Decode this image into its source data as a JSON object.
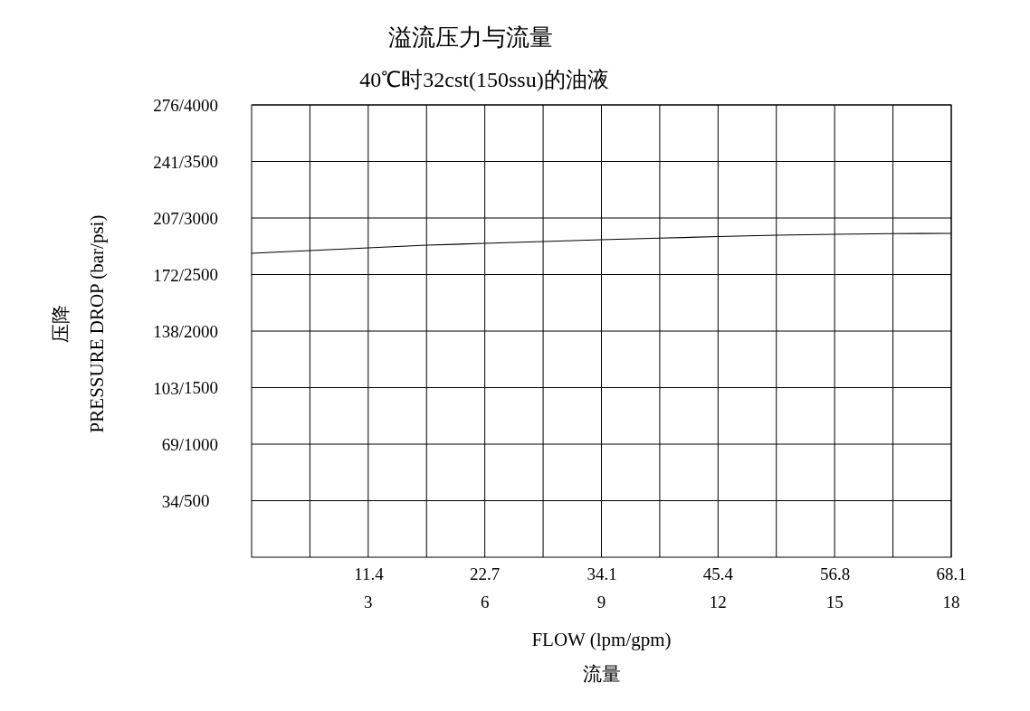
{
  "chart_data": {
    "type": "line",
    "title": "溢流压力与流量",
    "subtitle": "40℃时32cst(150ssu)的油液",
    "xlabel": "FLOW (lpm/gpm)\n流量",
    "ylabel": "压降\nPRESSURE DROP (bar/psi)",
    "x": [
      0,
      1.5,
      3,
      4.5,
      6,
      7.5,
      9,
      10.5,
      12,
      13.5,
      15,
      16.5,
      18
    ],
    "series": [
      {
        "color": "#000000",
        "axis": "y2",
        "values": [
          2688,
          2712,
          2736,
          2760,
          2776,
          2792,
          2808,
          2822,
          2836,
          2848,
          2856,
          2862,
          2864
        ]
      }
    ],
    "xlim": [
      0,
      18
    ],
    "xticks": [
      {
        "value": 1.5,
        "label": null
      },
      3,
      {
        "value": 4.5,
        "label": null
      },
      6,
      {
        "value": 7.5,
        "label": null
      },
      9,
      {
        "value": 10.5,
        "label": null
      },
      12,
      {
        "value": 13.5,
        "label": null
      },
      15,
      {
        "value": 16.5,
        "label": null
      },
      18
    ],
    "x2lim": [
      0,
      68.1
    ],
    "x2ticks": [
      11.4,
      22.7,
      34.1,
      45.4,
      56.8,
      68.1
    ],
    "ylim": [
      0,
      276
    ],
    "yticks": [
      {
        "value": 34,
        "label": "34/"
      },
      {
        "value": 69,
        "label": "69/"
      },
      {
        "value": 103,
        "label": "103/"
      },
      {
        "value": 138,
        "label": "138/"
      },
      {
        "value": 172,
        "label": "172/"
      },
      {
        "value": 207,
        "label": "207/"
      },
      {
        "value": 241,
        "label": "241/"
      },
      {
        "value": 276,
        "label": "276/"
      }
    ],
    "y2lim": [
      0,
      4000
    ],
    "y2ticks": [
      500,
      1000,
      1500,
      2000,
      2500,
      3000,
      3500,
      4000
    ],
    "grid": true,
    "marker": "none",
    "line_style": "solid"
  }
}
